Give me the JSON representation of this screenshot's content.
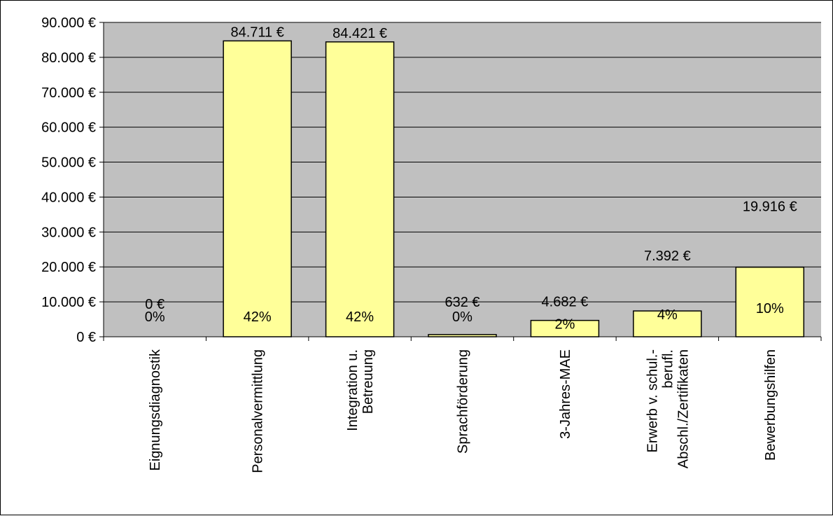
{
  "colors": {
    "plot_background": "#c0c0c0",
    "bar_fill": "#ffff99",
    "bar_stroke": "#000000",
    "gridline": "#000000"
  },
  "chart_data": {
    "type": "bar",
    "title": "",
    "xlabel": "",
    "ylabel": "",
    "ylim": [
      0,
      90000
    ],
    "y_ticks": [
      0,
      10000,
      20000,
      30000,
      40000,
      50000,
      60000,
      70000,
      80000,
      90000
    ],
    "y_tick_labels": [
      "0 €",
      "10.000 €",
      "20.000 €",
      "30.000 €",
      "40.000 €",
      "50.000 €",
      "60.000 €",
      "70.000 €",
      "80.000 €",
      "90.000 €"
    ],
    "grid": true,
    "legend": "none",
    "categories": [
      "Eignungsdiagnostik",
      "Personalvermittlung",
      "Integration u. Betreuung",
      "Sprachförderung",
      "3-Jahres-MAE",
      "Erwerb v. schul.-berufl. Abschl./Zertifikaten",
      "Bewerbungshilfen"
    ],
    "category_label_lines": [
      [
        "Eignungsdiagnostik"
      ],
      [
        "Personalvermittlung"
      ],
      [
        "Integration u.",
        "Betreuung"
      ],
      [
        "Sprachförderung"
      ],
      [
        "3-Jahres-MAE"
      ],
      [
        "Erwerb v. schul.-",
        "berufl.",
        "Abschl./Zertifikaten"
      ],
      [
        "Bewerbungshilfen"
      ]
    ],
    "values": [
      0,
      84711,
      84421,
      632,
      4682,
      7392,
      19916
    ],
    "value_labels": [
      "0 €",
      "84.711 €",
      "84.421 €",
      "632 €",
      "4.682 €",
      "7.392 €",
      "19.916 €"
    ],
    "percent_labels": [
      "0%",
      "42%",
      "42%",
      "0%",
      "2%",
      "4%",
      "10%"
    ]
  }
}
